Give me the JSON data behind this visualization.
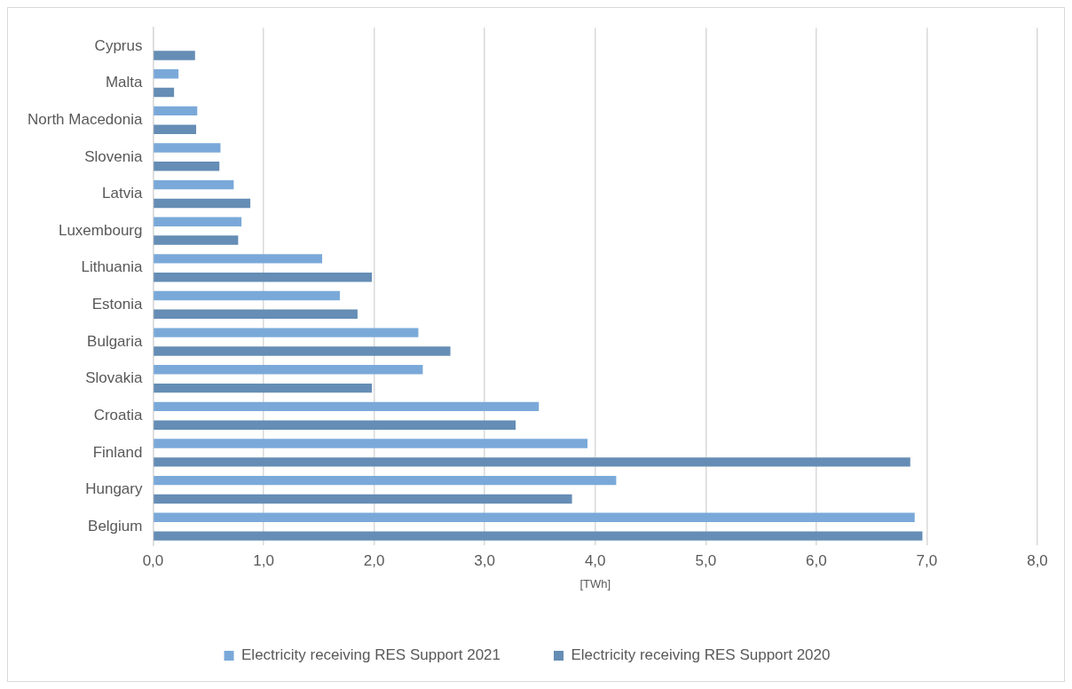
{
  "chart_data": {
    "type": "bar",
    "orientation": "horizontal",
    "xlabel": "[TWh]",
    "categories": [
      "Cyprus",
      "Malta",
      "North Macedonia",
      "Slovenia",
      "Latvia",
      "Luxembourg",
      "Lithuania",
      "Estonia",
      "Bulgaria",
      "Slovakia",
      "Croatia",
      "Finland",
      "Hungary",
      "Belgium"
    ],
    "series": [
      {
        "name": "Electricity receiving RES Support 2021",
        "color": "#7aa9d9",
        "values": [
          null,
          0.23,
          0.4,
          0.61,
          0.73,
          0.8,
          1.53,
          1.69,
          2.4,
          2.44,
          3.49,
          3.93,
          4.19,
          6.89
        ]
      },
      {
        "name": "Electricity receiving RES Support 2020",
        "color": "#658db5",
        "values": [
          0.38,
          0.19,
          0.39,
          0.6,
          0.88,
          0.77,
          1.98,
          1.85,
          2.69,
          1.98,
          3.28,
          6.85,
          3.79,
          6.96
        ]
      }
    ],
    "xlim": [
      0,
      8
    ],
    "xticks": [
      {
        "value": 0,
        "label": "0,0"
      },
      {
        "value": 1,
        "label": "1,0"
      },
      {
        "value": 2,
        "label": "2,0"
      },
      {
        "value": 3,
        "label": "3,0"
      },
      {
        "value": 4,
        "label": "4,0"
      },
      {
        "value": 5,
        "label": "5,0"
      },
      {
        "value": 6,
        "label": "6,0"
      },
      {
        "value": 7,
        "label": "7,0"
      },
      {
        "value": 8,
        "label": "8,0"
      }
    ],
    "grid": "x",
    "legend": "bottom"
  }
}
